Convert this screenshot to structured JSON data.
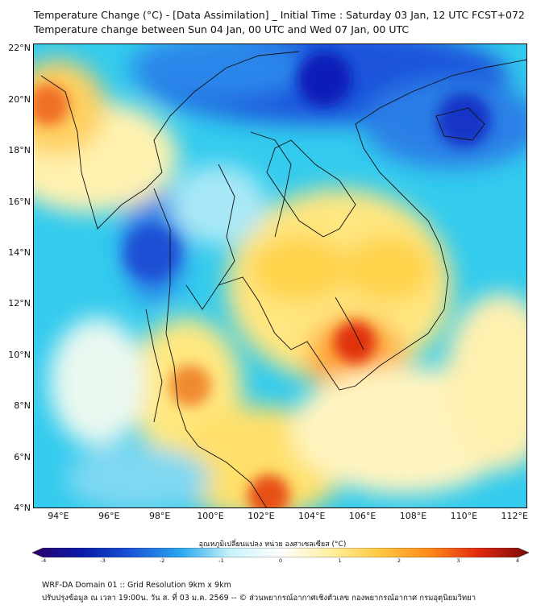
{
  "header": {
    "title_line1": "Temperature Change (°C) - [Data Assimilation] _ Initial Time : Saturday 03 Jan, 12 UTC FCST+072",
    "title_line2": "Temperature change between Sun 04 Jan, 00 UTC and Wed 07 Jan, 00 UTC"
  },
  "map": {
    "lat_ticks": [
      "22°N",
      "20°N",
      "18°N",
      "16°N",
      "14°N",
      "12°N",
      "10°N",
      "8°N",
      "6°N",
      "4°N"
    ],
    "lon_ticks": [
      "94°E",
      "96°E",
      "98°E",
      "100°E",
      "102°E",
      "104°E",
      "106°E",
      "108°E",
      "110°E",
      "112°E"
    ],
    "extent": {
      "lon_min": 93.0,
      "lon_max": 112.5,
      "lat_min": 4.0,
      "lat_max": 22.2
    },
    "background_color": "#33cbee",
    "features": [
      {
        "label": "cold core north",
        "lon": 104.5,
        "lat": 20.8,
        "color": "#0a1fb8",
        "value_c": -3.3
      },
      {
        "label": "cold core east",
        "lon": 110.0,
        "lat": 19.2,
        "color": "#1535c8",
        "value_c": -3.0
      },
      {
        "label": "cold core west",
        "lon": 97.7,
        "lat": 14.0,
        "color": "#1f4fd4",
        "value_c": -2.6
      },
      {
        "label": "warm core Cambodia",
        "lon": 105.7,
        "lat": 10.5,
        "color": "#e03010",
        "value_c": 3.0
      },
      {
        "label": "warm core Malaya",
        "lon": 102.3,
        "lat": 4.5,
        "color": "#e85014",
        "value_c": 2.8
      },
      {
        "label": "warm core Myanmar",
        "lon": 93.6,
        "lat": 19.8,
        "color": "#f07028",
        "value_c": 2.5
      },
      {
        "label": "warm core Andaman",
        "lon": 99.2,
        "lat": 8.8,
        "color": "#f08a30",
        "value_c": 2.0
      }
    ]
  },
  "colorbar": {
    "title": "อุณหภูมิเปลี่ยนแปลง หน่วย องศาเซลเซียส (°C)",
    "ticks": [
      "-4",
      "-3",
      "-2",
      "-1",
      "0",
      "1",
      "2",
      "3",
      "4"
    ],
    "min": -4,
    "max": 4,
    "colors": [
      "#2b006b",
      "#0a1aa8",
      "#1a55d8",
      "#2aa8f0",
      "#c8f4fa",
      "#ffffff",
      "#fff0a0",
      "#ffc840",
      "#ff8a1a",
      "#e02810",
      "#7a0a0a"
    ]
  },
  "footer": {
    "line1": "WRF-DA Domain 01 :: Grid Resolution 9km x 9km",
    "line2": "ปรับปรุงข้อมูล ณ เวลา 19:00น. วัน ส. ที่ 03 ม.ค. 2569 -- © ส่วนพยากรณ์อากาศเชิงตัวเลข กองพยากรณ์อากาศ กรมอุตุนิยมวิทยา"
  }
}
